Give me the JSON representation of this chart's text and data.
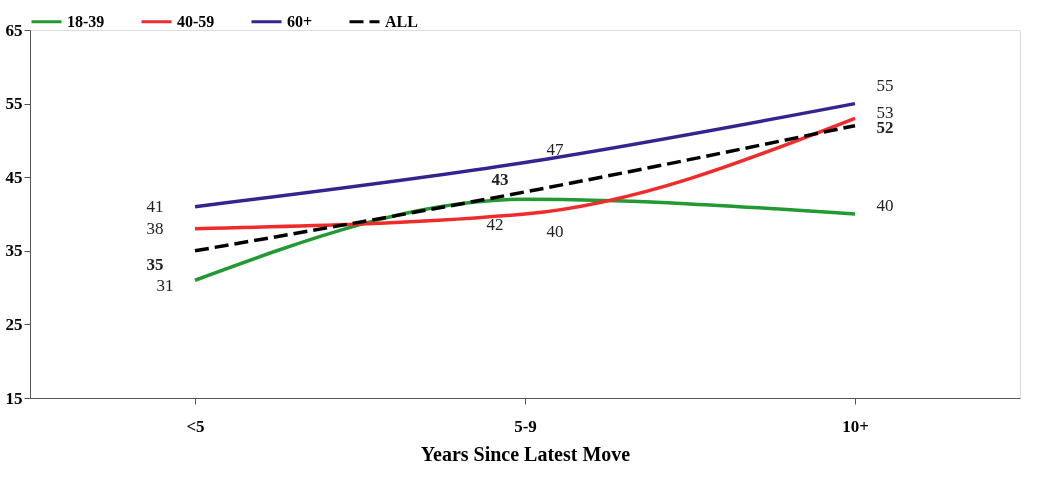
{
  "chart_data": {
    "type": "line",
    "xlabel": "Years Since Latest Move",
    "categories": [
      "<5",
      "5-9",
      "10+"
    ],
    "ylim": [
      15,
      65
    ],
    "yticks": [
      15,
      25,
      35,
      45,
      55,
      65
    ],
    "grid": false,
    "legend": "top",
    "data_labels": true,
    "marker": "none",
    "series": [
      {
        "name": "18-39",
        "color": "#229933",
        "values": [
          31,
          42,
          40
        ]
      },
      {
        "name": "40-59",
        "color": "#ee2c2c",
        "values": [
          38,
          40,
          53
        ]
      },
      {
        "name": "60+",
        "color": "#33248f",
        "values": [
          41,
          47,
          55
        ]
      },
      {
        "name": "ALL",
        "color": "#000000",
        "values": [
          35,
          43,
          52
        ],
        "line_style": "dashed"
      }
    ]
  }
}
